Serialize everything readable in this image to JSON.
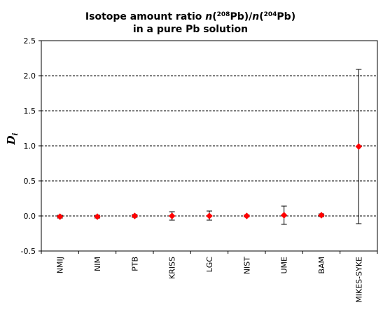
{
  "chart_data": {
    "type": "scatter",
    "title_line1": {
      "prefix": "Isotope amount ratio ",
      "n1": "n",
      "open1": "(",
      "sup1": "208",
      "el1": "Pb)/",
      "n2": "n",
      "open2": "(",
      "sup2": "204",
      "el2": "Pb)"
    },
    "title_line2": "in a pure Pb solution",
    "ylabel": "D",
    "ylabel_sub": "i",
    "ylim": [
      -0.5,
      2.5
    ],
    "yticks": [
      -0.5,
      0.0,
      0.5,
      1.0,
      1.5,
      2.0,
      2.5
    ],
    "ytick_labels": [
      "-0.5",
      "0.0",
      "0.5",
      "1.0",
      "1.5",
      "2.0",
      "2.5"
    ],
    "grid": "horizontal dashed",
    "categories": [
      "NMIJ",
      "NIM",
      "PTB",
      "KRISS",
      "LGC",
      "NIST",
      "UME",
      "BAM",
      "MIKES-SYKE"
    ],
    "values": [
      -0.01,
      -0.01,
      0.0,
      0.0,
      0.0,
      0.0,
      0.01,
      0.01,
      0.99
    ],
    "err_low": [
      -0.03,
      -0.03,
      -0.02,
      -0.06,
      -0.06,
      -0.015,
      -0.12,
      -0.01,
      -0.11
    ],
    "err_high": [
      0.01,
      0.01,
      0.02,
      0.06,
      0.07,
      0.015,
      0.14,
      0.03,
      2.09
    ],
    "marker_color": "#ff0000"
  }
}
